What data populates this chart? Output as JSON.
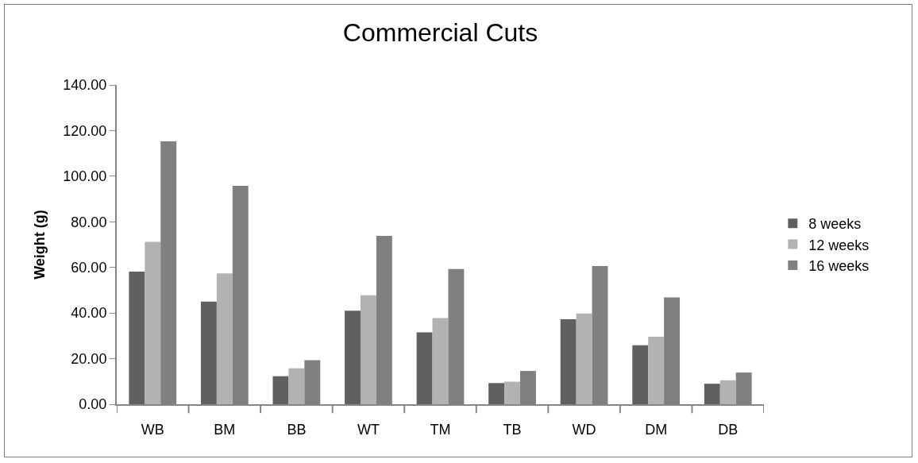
{
  "chart_data": {
    "type": "bar",
    "title": "Commercial Cuts",
    "ylabel": "Weight (g)",
    "categories": [
      "WB",
      "BM",
      "BB",
      "WT",
      "TM",
      "TB",
      "WD",
      "DM",
      "DB"
    ],
    "series": [
      {
        "name": "8 weeks",
        "color": "#606060",
        "values": [
          58.2,
          45.0,
          12.3,
          41.0,
          31.5,
          9.3,
          37.3,
          25.9,
          9.0
        ]
      },
      {
        "name": "12 weeks",
        "color": "#b2b2b2",
        "values": [
          71.2,
          57.4,
          15.8,
          47.8,
          37.8,
          9.9,
          39.8,
          29.6,
          10.5
        ]
      },
      {
        "name": "16 weeks",
        "color": "#808080",
        "values": [
          115.3,
          95.8,
          19.3,
          73.8,
          59.3,
          14.6,
          60.6,
          46.8,
          13.9
        ]
      }
    ],
    "ylim": [
      0,
      140
    ],
    "yticks": [
      {
        "value": 0,
        "label": "0.00"
      },
      {
        "value": 20,
        "label": "20.00"
      },
      {
        "value": 40,
        "label": "40.00"
      },
      {
        "value": 60,
        "label": "60.00"
      },
      {
        "value": 80,
        "label": "80.00"
      },
      {
        "value": 100,
        "label": "100.00"
      },
      {
        "value": 120,
        "label": "120.00"
      },
      {
        "value": 140,
        "label": "140.00"
      }
    ],
    "grid": false,
    "legend": "right"
  }
}
